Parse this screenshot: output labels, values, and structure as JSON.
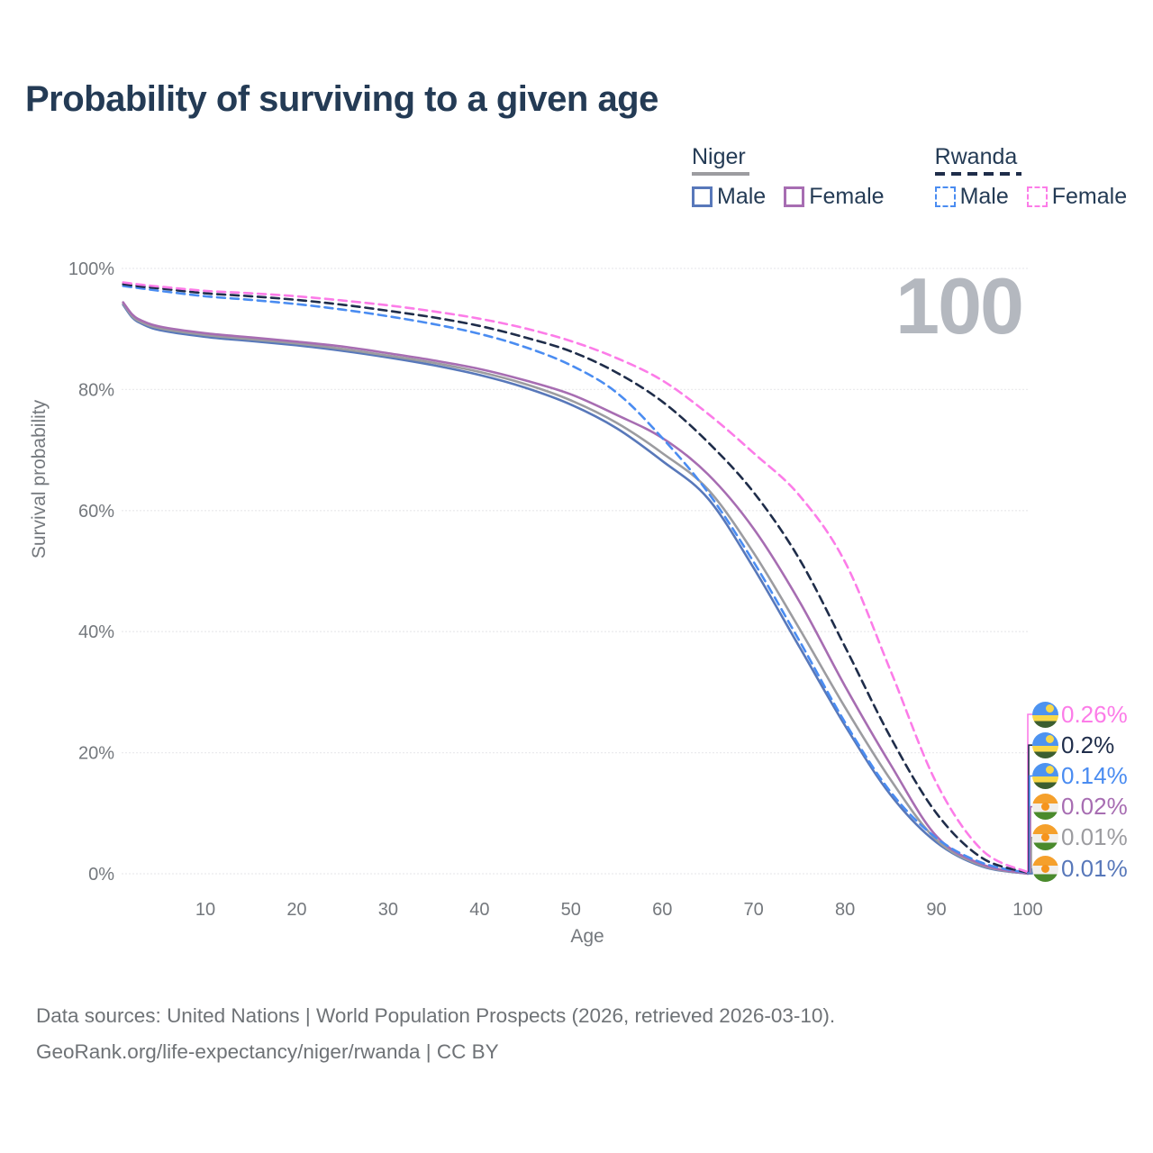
{
  "title": "Probability of surviving to a given age",
  "watermark_age": "100",
  "colors": {
    "title_text": "#243b55",
    "axis_text": "#74787d",
    "footer_text": "#6e7276",
    "watermark": "#b4b8bf",
    "grid": "#ebebee"
  },
  "legend": {
    "groups": [
      {
        "id": "niger",
        "label": "Niger",
        "underline_color": "#9c9ca0",
        "underline_dashed": false,
        "items": [
          {
            "id": "niger-male",
            "label": "Male",
            "color": "#5878ba",
            "dashed": false
          },
          {
            "id": "niger-female",
            "label": "Female",
            "color": "#a76db2",
            "dashed": false
          }
        ]
      },
      {
        "id": "rwanda",
        "label": "Rwanda",
        "underline_color": "#1f2d4a",
        "underline_dashed": true,
        "items": [
          {
            "id": "rwanda-male",
            "label": "Male",
            "color": "#4a8cf1",
            "dashed": true
          },
          {
            "id": "rwanda-female",
            "label": "Female",
            "color": "#fc7ce8",
            "dashed": true
          }
        ]
      }
    ]
  },
  "chart_data": {
    "type": "line",
    "title": "Probability of surviving to a given age",
    "xlabel": "Age",
    "ylabel": "Survival probability",
    "xlim": [
      1,
      100
    ],
    "ylim": [
      0,
      100
    ],
    "x_ticks": [
      10,
      20,
      30,
      40,
      50,
      60,
      70,
      80,
      90,
      100
    ],
    "y_ticks": [
      0,
      20,
      40,
      60,
      80,
      100
    ],
    "y_tick_suffix": "%",
    "grid": "horizontal",
    "legend_position": "top-right",
    "ages": [
      1,
      2,
      3,
      5,
      10,
      15,
      20,
      25,
      30,
      35,
      40,
      45,
      50,
      55,
      60,
      65,
      70,
      75,
      80,
      85,
      90,
      95,
      100
    ],
    "series": [
      {
        "id": "niger-male",
        "name": "Niger Male",
        "country": "Niger",
        "sex": "Male",
        "color": "#5878ba",
        "dashed": false,
        "values": [
          94.0,
          91.9,
          90.9,
          89.8,
          88.7,
          88.0,
          87.3,
          86.4,
          85.3,
          84.0,
          82.4,
          80.3,
          77.5,
          73.6,
          68.2,
          62.0,
          50.5,
          37.5,
          24.5,
          13.0,
          5.2,
          1.2,
          0.01
        ]
      },
      {
        "id": "niger-total",
        "name": "Niger",
        "country": "Niger",
        "sex": "Both",
        "color": "#9c9ca0",
        "dashed": false,
        "values": [
          94.2,
          92.1,
          91.1,
          90.1,
          89.0,
          88.3,
          87.6,
          86.7,
          85.6,
          84.4,
          82.9,
          80.9,
          78.2,
          74.5,
          69.5,
          63.5,
          53.0,
          40.5,
          27.5,
          15.5,
          5.6,
          1.35,
          0.01
        ]
      },
      {
        "id": "niger-female",
        "name": "Niger Female",
        "country": "Niger",
        "sex": "Female",
        "color": "#a76db2",
        "dashed": false,
        "values": [
          94.4,
          92.4,
          91.4,
          90.4,
          89.3,
          88.6,
          87.9,
          87.1,
          86.0,
          84.8,
          83.4,
          81.5,
          79.2,
          75.8,
          72.0,
          66.0,
          57.0,
          45.0,
          31.0,
          18.0,
          6.2,
          1.55,
          0.02
        ]
      },
      {
        "id": "rwanda-male",
        "name": "Rwanda Male",
        "country": "Rwanda",
        "sex": "Male",
        "color": "#4a8cf1",
        "dashed": true,
        "values": [
          97.1,
          96.9,
          96.7,
          96.3,
          95.4,
          94.8,
          94.1,
          93.2,
          92.1,
          90.8,
          89.2,
          87.0,
          84.0,
          79.5,
          72.0,
          63.0,
          51.5,
          38.5,
          25.0,
          13.5,
          5.9,
          1.8,
          0.14
        ]
      },
      {
        "id": "rwanda-total",
        "name": "Rwanda",
        "country": "Rwanda",
        "sex": "Both",
        "color": "#1f2d4a",
        "dashed": true,
        "values": [
          97.4,
          97.2,
          97.0,
          96.7,
          95.9,
          95.4,
          94.8,
          94.0,
          93.0,
          91.9,
          90.5,
          88.6,
          86.3,
          82.8,
          78.0,
          71.3,
          63.0,
          52.0,
          37.5,
          22.5,
          10.0,
          2.6,
          0.2
        ]
      },
      {
        "id": "rwanda-female",
        "name": "Rwanda Female",
        "country": "Rwanda",
        "sex": "Female",
        "color": "#fc7ce8",
        "dashed": true,
        "values": [
          97.7,
          97.5,
          97.3,
          97.0,
          96.3,
          95.9,
          95.4,
          94.7,
          93.9,
          92.9,
          91.7,
          90.1,
          88.0,
          85.2,
          81.5,
          76.0,
          69.5,
          62.5,
          51.5,
          33.5,
          15.0,
          3.9,
          0.26
        ]
      }
    ]
  },
  "end_labels": [
    {
      "series": "rwanda-female",
      "flag": "rwanda-flag-icon",
      "value": "0.26%",
      "color": "#fc7ce8"
    },
    {
      "series": "rwanda-total",
      "flag": "rwanda-flag-icon",
      "value": "0.2%",
      "color": "#1f2d4a"
    },
    {
      "series": "rwanda-male",
      "flag": "rwanda-flag-icon",
      "value": "0.14%",
      "color": "#4a8cf1"
    },
    {
      "series": "niger-female",
      "flag": "niger-flag-icon",
      "value": "0.02%",
      "color": "#a76db2"
    },
    {
      "series": "niger-total",
      "flag": "niger-flag-icon",
      "value": "0.01%",
      "color": "#9c9ca0"
    },
    {
      "series": "niger-male",
      "flag": "niger-flag-icon",
      "value": "0.01%",
      "color": "#5878ba"
    }
  ],
  "footer": {
    "line1": "Data sources: United Nations | World Population Prospects (2026, retrieved 2026-03-10).",
    "line2": "GeoRank.org/life-expectancy/niger/rwanda | CC BY"
  }
}
